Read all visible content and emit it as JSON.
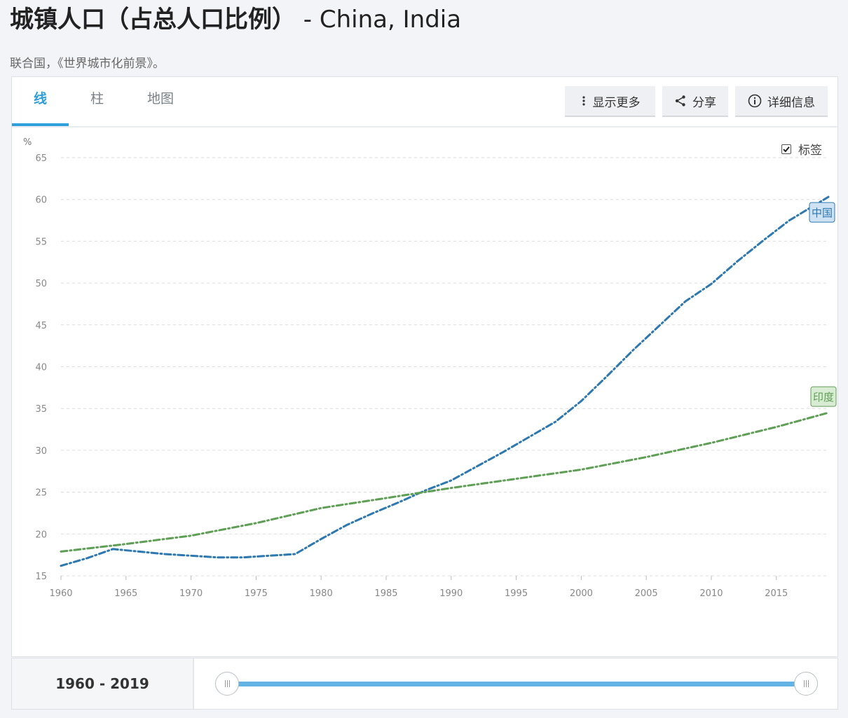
{
  "page": {
    "title_main": "城镇人口（占总人口比例）",
    "title_countries": " - China, India",
    "source": "联合国，《世界城市化前景》。"
  },
  "tabs": [
    {
      "label": "线",
      "active": true
    },
    {
      "label": "柱",
      "active": false
    },
    {
      "label": "地图",
      "active": false
    }
  ],
  "toolbar": {
    "more_label": "显示更多",
    "more_icon": "vertical-dots-icon",
    "share_label": "分享",
    "share_icon": "share-icon",
    "details_label": "详细信息",
    "details_icon": "info-icon"
  },
  "labels_toggle": {
    "label": "标签",
    "checked": true
  },
  "range": {
    "label": "1960 - 2019",
    "start": 1960,
    "end": 2019
  },
  "colors": {
    "china": "#2e78b0",
    "india": "#5e9e55",
    "accent": "#2f9fdc"
  },
  "chart_data": {
    "type": "line",
    "ylabel": "%",
    "xlim": [
      1960,
      2019
    ],
    "ylim": [
      15,
      65
    ],
    "yticks": [
      15,
      20,
      25,
      30,
      35,
      40,
      45,
      50,
      55,
      60,
      65
    ],
    "xticks": [
      1960,
      1965,
      1970,
      1975,
      1980,
      1985,
      1990,
      1995,
      2000,
      2005,
      2010,
      2015
    ],
    "grid": true,
    "line_style": "dash-dot",
    "series": [
      {
        "name": "中国",
        "color": "#2e78b0",
        "x": [
          1960,
          1962,
          1964,
          1966,
          1968,
          1970,
          1972,
          1974,
          1976,
          1978,
          1980,
          1982,
          1984,
          1986,
          1988,
          1990,
          1992,
          1994,
          1996,
          1998,
          2000,
          2002,
          2004,
          2006,
          2008,
          2010,
          2012,
          2014,
          2016,
          2019
        ],
        "values": [
          16.2,
          17.1,
          18.2,
          17.9,
          17.6,
          17.4,
          17.2,
          17.2,
          17.4,
          17.6,
          19.4,
          21.1,
          22.5,
          23.8,
          25.2,
          26.4,
          28.1,
          29.8,
          31.6,
          33.4,
          35.9,
          38.9,
          42.0,
          44.9,
          47.8,
          49.9,
          52.6,
          55.1,
          57.5,
          60.3
        ]
      },
      {
        "name": "印度",
        "color": "#5e9e55",
        "x": [
          1960,
          1965,
          1970,
          1975,
          1980,
          1985,
          1990,
          1995,
          2000,
          2005,
          2010,
          2015,
          2019
        ],
        "values": [
          17.9,
          18.8,
          19.8,
          21.3,
          23.1,
          24.3,
          25.5,
          26.6,
          27.7,
          29.2,
          30.9,
          32.8,
          34.5
        ]
      }
    ]
  }
}
